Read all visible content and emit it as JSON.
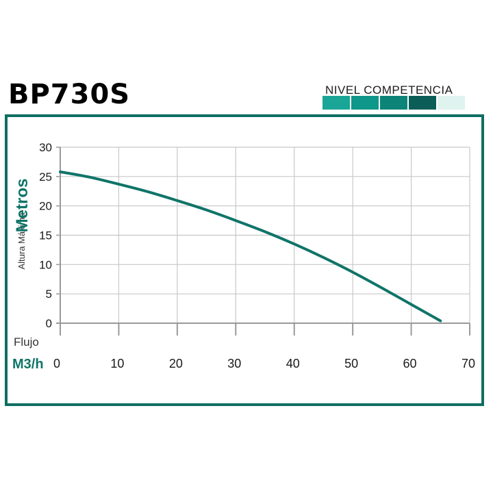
{
  "title": "BP730S",
  "level": {
    "label": "NIVEL COMPETENCIA",
    "segments": [
      {
        "color": "#1aa696",
        "active": true
      },
      {
        "color": "#0f978a",
        "active": true
      },
      {
        "color": "#0c8578",
        "active": true
      },
      {
        "color": "#0a5e57",
        "active": true
      },
      {
        "color": "#dff3ef",
        "active": false
      }
    ]
  },
  "colors": {
    "frame": "#0e6e63",
    "curve": "#0f7468",
    "grid": "#c8c8c8",
    "axis": "#999999",
    "unit": "#0f7468"
  },
  "chart_data": {
    "type": "line",
    "title": "",
    "xlabel": "Flujo",
    "xunit": "M3/h",
    "ylabel": "Altura Máxima",
    "yunit": "Metros",
    "xlim": [
      0,
      70
    ],
    "ylim": [
      0,
      30
    ],
    "xticks": [
      0,
      10,
      20,
      30,
      40,
      50,
      60,
      70
    ],
    "yticks": [
      0,
      5,
      10,
      15,
      20,
      25,
      30
    ],
    "grid": true,
    "series": [
      {
        "x": [
          0,
          5,
          10,
          15,
          20,
          25,
          30,
          35,
          40,
          45,
          50,
          55,
          60,
          65
        ],
        "y": [
          25.8,
          24.9,
          23.7,
          22.4,
          20.9,
          19.3,
          17.5,
          15.6,
          13.5,
          11.2,
          8.7,
          6.0,
          3.2,
          0.4
        ]
      }
    ]
  }
}
